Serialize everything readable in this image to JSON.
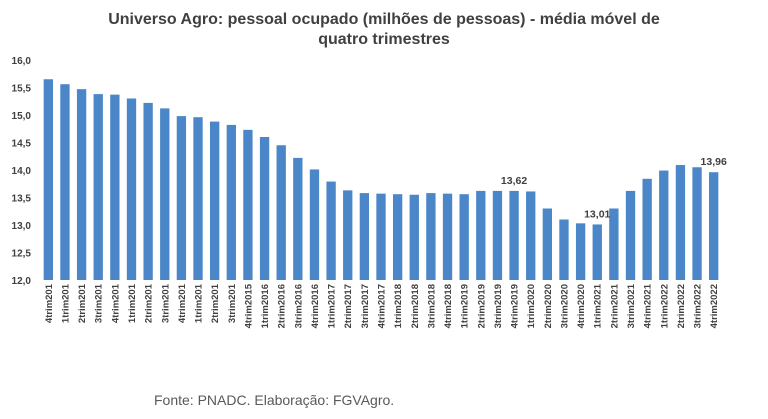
{
  "chart_data": {
    "type": "bar",
    "title_lines": [
      "Universo Agro: pessoal ocupado (milhões de pessoas) - média móvel de",
      "quatro trimestres"
    ],
    "xlabel": "",
    "ylabel": "",
    "ylim": [
      12.0,
      16.0
    ],
    "yticks": [
      "12,0",
      "12,5",
      "13,0",
      "13,5",
      "14,0",
      "14,5",
      "15,0",
      "15,5",
      "16,0"
    ],
    "grid": false,
    "legend": "none",
    "bar_color": "#4a86c8",
    "categories": [
      "4trim201",
      "1trim201",
      "2trim201",
      "3trim201",
      "4trim201",
      "1trim201",
      "2trim201",
      "3trim201",
      "4trim201",
      "1trim201",
      "2trim201",
      "3trim201",
      "4trim2015",
      "1trim2016",
      "2trim2016",
      "3trim2016",
      "4trim2016",
      "1trim2017",
      "2trim2017",
      "3trim2017",
      "4trim2017",
      "1trim2018",
      "2trim2018",
      "3trim2018",
      "4trim2018",
      "1trim2019",
      "2trim2019",
      "3trim2019",
      "4trim2019",
      "1trim2020",
      "2trim2020",
      "3trim2020",
      "4trim2020",
      "1trim2021",
      "2trim2021",
      "3trim2021",
      "4trim2021",
      "1trim2022",
      "2trim2022",
      "3trim2022",
      "4trim2022"
    ],
    "values": [
      15.65,
      15.56,
      15.47,
      15.38,
      15.37,
      15.3,
      15.22,
      15.12,
      14.98,
      14.96,
      14.88,
      14.82,
      14.73,
      14.6,
      14.45,
      14.22,
      14.01,
      13.79,
      13.63,
      13.58,
      13.57,
      13.56,
      13.55,
      13.58,
      13.57,
      13.56,
      13.62,
      13.62,
      13.62,
      13.61,
      13.3,
      13.1,
      13.03,
      13.01,
      13.3,
      13.62,
      13.84,
      13.99,
      14.09,
      14.05,
      13.96
    ],
    "data_labels": [
      {
        "index": 28,
        "text": "13,62"
      },
      {
        "index": 33,
        "text": "13,01"
      },
      {
        "index": 40,
        "text": "13,96"
      }
    ]
  },
  "footer": {
    "source": "Fonte: PNADC. Elaboração: FGVAgro."
  }
}
